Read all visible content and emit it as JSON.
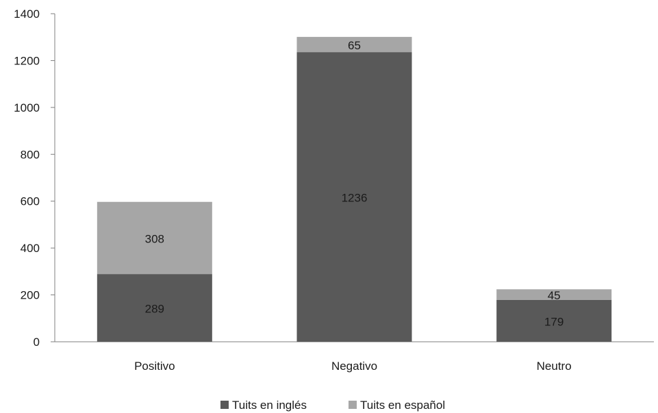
{
  "chart_data": {
    "type": "bar",
    "stacked": true,
    "categories": [
      "Positivo",
      "Negativo",
      "Neutro"
    ],
    "series": [
      {
        "name": "Tuits en inglés",
        "values": [
          289,
          1236,
          179
        ],
        "color": "#595959"
      },
      {
        "name": "Tuits en español",
        "values": [
          308,
          65,
          45
        ],
        "color": "#a6a6a6"
      }
    ],
    "data_labels": [
      [
        "289",
        "1236",
        "179"
      ],
      [
        "308",
        "65",
        "45"
      ]
    ],
    "title": "",
    "xlabel": "",
    "ylabel": "",
    "ylim": [
      0,
      1400
    ],
    "yticks": [
      0,
      200,
      400,
      600,
      800,
      1000,
      1200,
      1400
    ],
    "grid": false,
    "legend_position": "bottom"
  }
}
